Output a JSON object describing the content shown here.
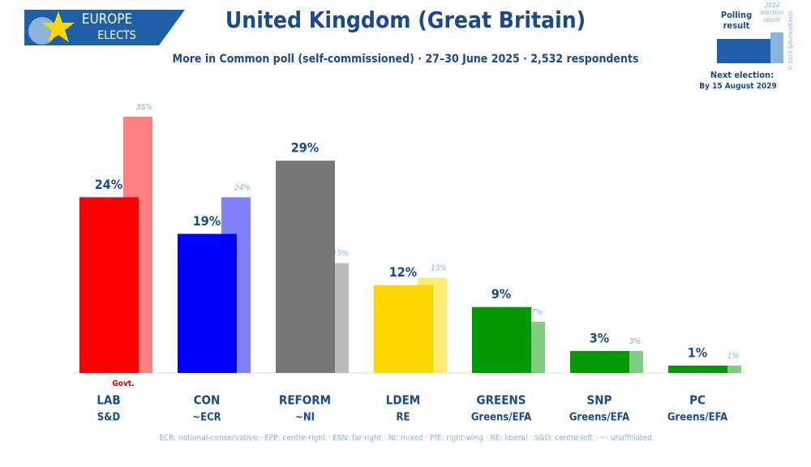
{
  "logo": {
    "line1": "EUROPE",
    "line2": "ELECTS"
  },
  "chart_data": {
    "type": "bar",
    "title": "United Kingdom (Great Britain)",
    "subtitle": "More in Common poll (self-commissioned) · 27–30 June 2025 · 2,532 respondents",
    "categories": [
      "LAB",
      "CON",
      "REFORM",
      "LDEM",
      "GREENS",
      "SNP",
      "PC"
    ],
    "groups": [
      "S&D",
      "~ECR",
      "~NI",
      "RE",
      "Greens/EFA",
      "Greens/EFA",
      "Greens/EFA"
    ],
    "series": [
      {
        "name": "Polling result",
        "color": "#1f5fa8",
        "colors": [
          "#ff0000",
          "#0000ff",
          "#777777",
          "#ffd700",
          "#009900",
          "#009900",
          "#009900"
        ],
        "values": [
          24,
          19,
          29,
          12,
          9,
          3,
          1
        ],
        "value_labels": [
          "24%",
          "19%",
          "29%",
          "12%",
          "9%",
          "3%",
          "1%"
        ]
      },
      {
        "name": "2024 election result",
        "color": "#8ab4dc",
        "colors": [
          "#ff8080",
          "#8080ff",
          "#bbbbbb",
          "#ffeb70",
          "#80cc80",
          "#80cc80",
          "#80cc80"
        ],
        "values": [
          35,
          24,
          15,
          13,
          7,
          3,
          1
        ],
        "value_labels": [
          "35%",
          "24%",
          "15%",
          "13%",
          "7%",
          "3%",
          "1%"
        ]
      }
    ],
    "annotation": "Govt.",
    "next_election": {
      "label": "Next election:",
      "date": "By 15 August 2029"
    },
    "footnote": "ECR: national-conservative · EPP: centre-right · ESN: far-right · NI: mixed · PfE: right-wing · RE: liberal · S&D: centre-left · ~: unaffiliated",
    "copyright": "© 2025 @EuropeElects"
  }
}
